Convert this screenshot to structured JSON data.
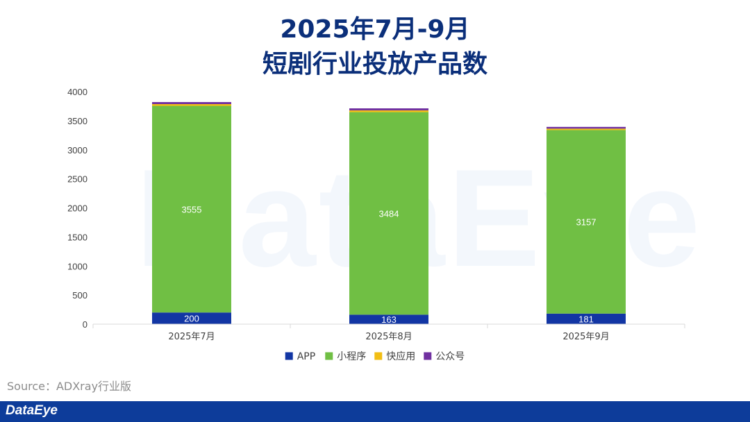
{
  "header": {
    "title_line1": "2025年7月-9月",
    "title_line2": "短剧行业投放产品数"
  },
  "watermark": "DataEye",
  "source": "Source：ADXray行业版",
  "footer": {
    "brand": "DataEye"
  },
  "colors": {
    "APP": "#1236a4",
    "小程序": "#70bf44",
    "快应用": "#f2be14",
    "公众号": "#7030a0",
    "footer": "#0d3c9a",
    "title": "#0b2f7a"
  },
  "chart_data": {
    "type": "bar",
    "stacked": true,
    "categories": [
      "2025年7月",
      "2025年8月",
      "2025年9月"
    ],
    "series": [
      {
        "name": "APP",
        "values": [
          200,
          163,
          181
        ],
        "labels": [
          "200",
          "163",
          "181"
        ]
      },
      {
        "name": "小程序",
        "values": [
          3555,
          3484,
          3157
        ],
        "labels": [
          "3555",
          "3484",
          "3157"
        ]
      },
      {
        "name": "快应用",
        "values": [
          30,
          30,
          25
        ]
      },
      {
        "name": "公众号",
        "values": [
          35,
          35,
          30
        ]
      }
    ],
    "yticks": [
      "0",
      "500",
      "1000",
      "1500",
      "2000",
      "2500",
      "3000",
      "3500",
      "4000"
    ],
    "ylim": [
      0,
      4000
    ],
    "legend_position": "bottom",
    "grid": false
  }
}
